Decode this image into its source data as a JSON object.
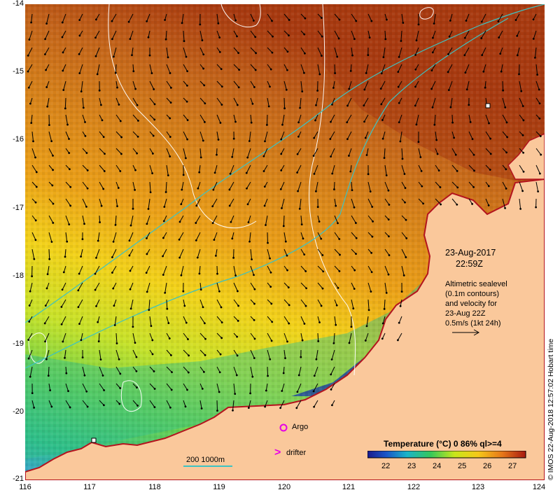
{
  "map": {
    "date": "23-Aug-2017",
    "time": "22:59Z",
    "altimetry_lines": [
      "Altimetric sealevel",
      "(0.1m contours)",
      "and velocity for",
      "23-Aug 22Z",
      "0.5m/s (1kt 24h)"
    ],
    "lat_labels": [
      "-14",
      "-15",
      "-16",
      "-17",
      "-18",
      "-19",
      "-20",
      "-21"
    ],
    "lon_labels": [
      "116",
      "117",
      "118",
      "119",
      "120",
      "121",
      "122",
      "123",
      "124"
    ],
    "argo_label": "Argo",
    "drifter_label": "drifter",
    "drifter_symbol": ">",
    "isobath_label": "200  1000m",
    "colorbar_title": "Temperature (°C) 0 86% ql>=4",
    "colorbar_ticks": [
      "22",
      "23",
      "24",
      "25",
      "26",
      "27"
    ],
    "credit": "© IMOS 22-Aug-2018 12:57:02 Hobart time",
    "colors": {
      "land": "#fac89b",
      "coastline_red": "#b4141e",
      "isobath": "#3cc3c3",
      "argo_marker": "#e600e6",
      "drifter_marker": "#e600e6"
    }
  }
}
